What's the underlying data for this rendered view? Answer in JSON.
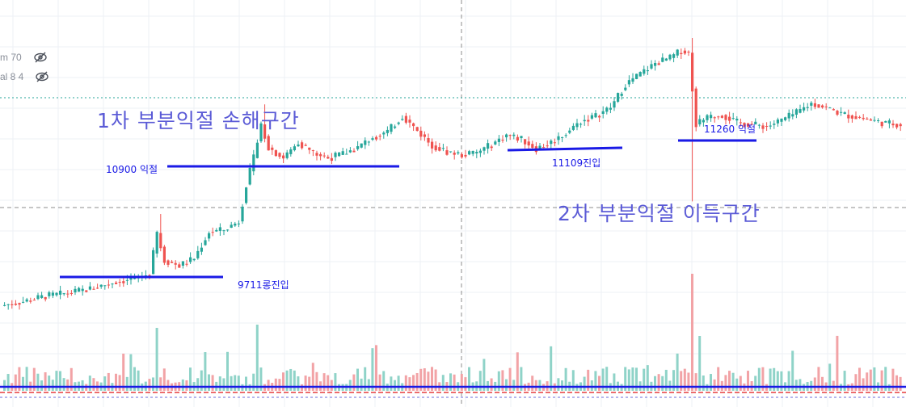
{
  "legend": [
    {
      "label": "m 70",
      "icon": "eye-off-icon"
    },
    {
      "label": "al 8 4",
      "icon": "eye-off-icon"
    }
  ],
  "annotations": {
    "zone1": "1차 부분익절 손해구간",
    "zone2": "2차 부분익절 이득구간",
    "tp1": "10900 익절",
    "entry1": "9711롱진입",
    "entry2": "11109진입",
    "tp2": "11260 익절"
  },
  "colors": {
    "up": "#26a69a",
    "down": "#ef5350",
    "up_volume": "#8fd3c8",
    "down_volume": "#f2a3a6",
    "annotation_line": "#1a1ae6",
    "grid": "#eef1f5",
    "crosshair": "#8c8c8c"
  },
  "chart_data": {
    "type": "candlestick",
    "y_range": [
      8800,
      12400
    ],
    "horizontal_levels": [
      {
        "name": "entry-1",
        "value": 9711
      },
      {
        "name": "take-profit-1",
        "value": 10900
      },
      {
        "name": "entry-2",
        "value": 11109
      },
      {
        "name": "take-profit-2",
        "value": 11260
      }
    ],
    "path_points": [
      [
        0,
        9500
      ],
      [
        6,
        9540
      ],
      [
        12,
        9590
      ],
      [
        18,
        9620
      ],
      [
        24,
        9660
      ],
      [
        30,
        9720
      ],
      [
        36,
        9760
      ],
      [
        40,
        9800
      ],
      [
        42,
        10190
      ],
      [
        44,
        9930
      ],
      [
        48,
        9880
      ],
      [
        52,
        9950
      ],
      [
        56,
        10200
      ],
      [
        60,
        10220
      ],
      [
        64,
        10300
      ],
      [
        66,
        10650
      ],
      [
        68,
        10900
      ],
      [
        70,
        11220
      ],
      [
        72,
        11000
      ],
      [
        76,
        10900
      ],
      [
        80,
        11050
      ],
      [
        84,
        10950
      ],
      [
        88,
        10900
      ],
      [
        92,
        10940
      ],
      [
        96,
        11000
      ],
      [
        100,
        11100
      ],
      [
        104,
        11150
      ],
      [
        108,
        11300
      ],
      [
        112,
        11160
      ],
      [
        116,
        11020
      ],
      [
        120,
        10960
      ],
      [
        124,
        10930
      ],
      [
        128,
        10950
      ],
      [
        132,
        11030
      ],
      [
        136,
        11120
      ],
      [
        140,
        11080
      ],
      [
        144,
        10990
      ],
      [
        148,
        11050
      ],
      [
        152,
        11140
      ],
      [
        156,
        11250
      ],
      [
        160,
        11300
      ],
      [
        164,
        11380
      ],
      [
        168,
        11600
      ],
      [
        172,
        11700
      ],
      [
        176,
        11800
      ],
      [
        180,
        11850
      ],
      [
        183,
        11920
      ],
      [
        185,
        11900
      ],
      [
        187,
        11220
      ],
      [
        190,
        11280
      ],
      [
        194,
        11310
      ],
      [
        198,
        11240
      ],
      [
        202,
        11220
      ],
      [
        206,
        11200
      ],
      [
        210,
        11260
      ],
      [
        214,
        11330
      ],
      [
        218,
        11420
      ],
      [
        222,
        11380
      ],
      [
        226,
        11320
      ],
      [
        230,
        11290
      ],
      [
        234,
        11260
      ],
      [
        238,
        11230
      ],
      [
        242,
        11220
      ]
    ],
    "spikes": [
      {
        "at": 42,
        "high": 10370
      },
      {
        "at": 70,
        "high": 11410
      },
      {
        "at": 185,
        "high": 12040,
        "low": 10490
      }
    ],
    "volume_spikes": [
      {
        "at": 41,
        "value": 78
      },
      {
        "at": 68,
        "value": 82
      },
      {
        "at": 185,
        "value": 145
      },
      {
        "at": 187,
        "value": 68
      }
    ]
  }
}
